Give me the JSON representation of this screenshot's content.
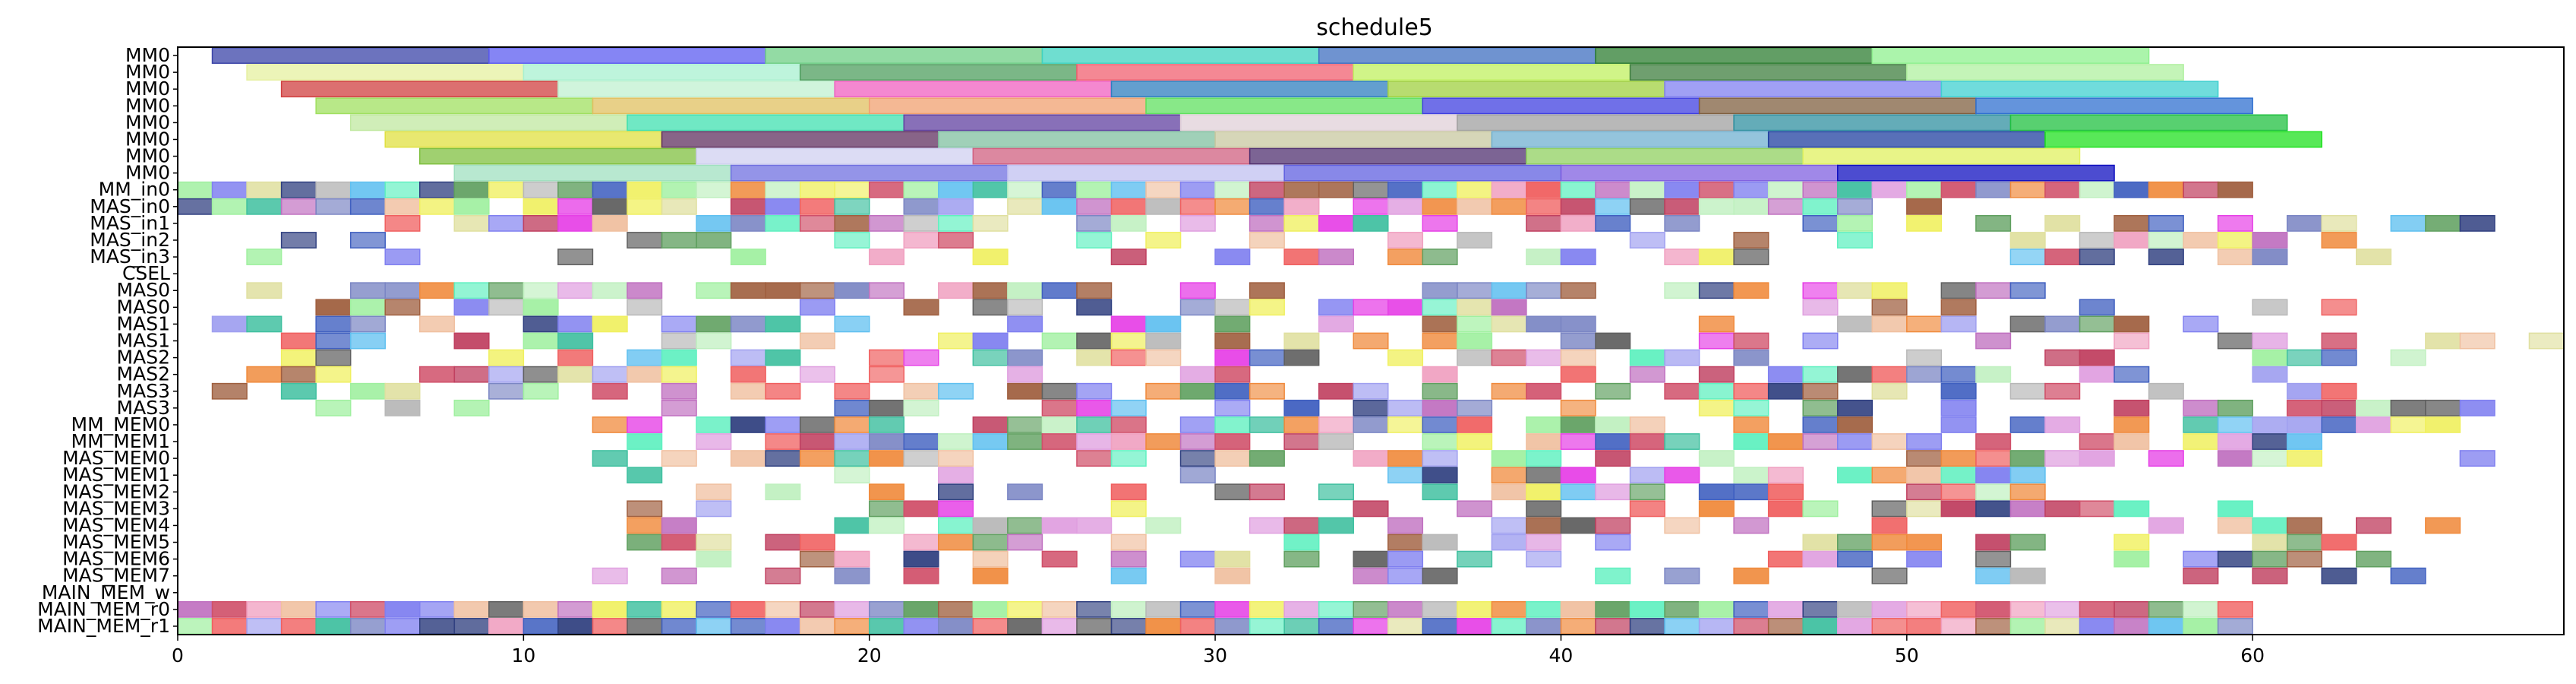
{
  "chart_data": {
    "type": "gantt",
    "title": "schedule5",
    "xlabel": "",
    "ylabel": "",
    "xlim": [
      0,
      69
    ],
    "xticks": [
      0,
      10,
      20,
      30,
      40,
      50,
      60
    ],
    "grid": false,
    "legend": "none",
    "rows": [
      "MM0",
      "MM0",
      "MM0",
      "MM0",
      "MM0",
      "MM0",
      "MM0",
      "MM0",
      "MM_in0",
      "MAS_in0",
      "MAS_in1",
      "MAS_in2",
      "MAS_in3",
      "CSEL",
      "MAS0",
      "MAS0",
      "MAS1",
      "MAS1",
      "MAS2",
      "MAS2",
      "MAS3",
      "MAS3",
      "MM_MEM0",
      "MM_MEM1",
      "MAS_MEM0",
      "MAS_MEM1",
      "MAS_MEM2",
      "MAS_MEM3",
      "MAS_MEM4",
      "MAS_MEM5",
      "MAS_MEM6",
      "MAS_MEM7",
      "MAIN_MEM_w",
      "MAIN_MEM_r0",
      "MAIN_MEM_r1"
    ],
    "tasks": [
      {
        "row": 0,
        "start": 1,
        "end": 9,
        "color": "#3b44a8"
      },
      {
        "row": 0,
        "start": 9,
        "end": 17,
        "color": "#5c5cf0"
      },
      {
        "row": 0,
        "start": 17,
        "end": 25,
        "color": "#6fcf86"
      },
      {
        "row": 0,
        "start": 25,
        "end": 33,
        "color": "#3fd3c0"
      },
      {
        "row": 0,
        "start": 33,
        "end": 41,
        "color": "#3f6fc0"
      },
      {
        "row": 0,
        "start": 41,
        "end": 49,
        "color": "#2e7d32"
      },
      {
        "row": 0,
        "start": 49,
        "end": 57,
        "color": "#8ff08f"
      },
      {
        "row": 1,
        "start": 2,
        "end": 10,
        "color": "#e6f0a0"
      },
      {
        "row": 1,
        "start": 10,
        "end": 18,
        "color": "#a8f0d0"
      },
      {
        "row": 1,
        "start": 18,
        "end": 26,
        "color": "#4f9f5f"
      },
      {
        "row": 1,
        "start": 26,
        "end": 34,
        "color": "#f06070"
      },
      {
        "row": 1,
        "start": 34,
        "end": 42,
        "color": "#c0f060"
      },
      {
        "row": 1,
        "start": 42,
        "end": 50,
        "color": "#3f7f3f"
      },
      {
        "row": 1,
        "start": 50,
        "end": 58,
        "color": "#b0f0a0"
      },
      {
        "row": 2,
        "start": 3,
        "end": 11,
        "color": "#d04040"
      },
      {
        "row": 2,
        "start": 11,
        "end": 19,
        "color": "#c0f0d0"
      },
      {
        "row": 2,
        "start": 19,
        "end": 27,
        "color": "#f060c0"
      },
      {
        "row": 2,
        "start": 27,
        "end": 35,
        "color": "#2f7fbf"
      },
      {
        "row": 2,
        "start": 35,
        "end": 43,
        "color": "#a0d040"
      },
      {
        "row": 2,
        "start": 43,
        "end": 51,
        "color": "#8080f0"
      },
      {
        "row": 2,
        "start": 51,
        "end": 59,
        "color": "#40d0d0"
      },
      {
        "row": 3,
        "start": 4,
        "end": 12,
        "color": "#a0e060"
      },
      {
        "row": 3,
        "start": 12,
        "end": 20,
        "color": "#e0c060"
      },
      {
        "row": 3,
        "start": 20,
        "end": 28,
        "color": "#f0a070"
      },
      {
        "row": 3,
        "start": 28,
        "end": 36,
        "color": "#60e060"
      },
      {
        "row": 3,
        "start": 36,
        "end": 44,
        "color": "#4040e0"
      },
      {
        "row": 3,
        "start": 44,
        "end": 52,
        "color": "#806040"
      },
      {
        "row": 3,
        "start": 52,
        "end": 60,
        "color": "#3070d0"
      },
      {
        "row": 4,
        "start": 5,
        "end": 13,
        "color": "#c0e8a0"
      },
      {
        "row": 4,
        "start": 13,
        "end": 21,
        "color": "#40e0b0"
      },
      {
        "row": 4,
        "start": 21,
        "end": 29,
        "color": "#6040a0"
      },
      {
        "row": 4,
        "start": 29,
        "end": 37,
        "color": "#e0d0d8"
      },
      {
        "row": 4,
        "start": 37,
        "end": 45,
        "color": "#a0a0a0"
      },
      {
        "row": 4,
        "start": 45,
        "end": 53,
        "color": "#3090a0"
      },
      {
        "row": 4,
        "start": 53,
        "end": 61,
        "color": "#20c040"
      },
      {
        "row": 5,
        "start": 6,
        "end": 14,
        "color": "#e0e040"
      },
      {
        "row": 5,
        "start": 14,
        "end": 22,
        "color": "#603060"
      },
      {
        "row": 5,
        "start": 22,
        "end": 30,
        "color": "#80c0a0"
      },
      {
        "row": 5,
        "start": 30,
        "end": 38,
        "color": "#c8c8a0"
      },
      {
        "row": 5,
        "start": 38,
        "end": 46,
        "color": "#70b0d0"
      },
      {
        "row": 5,
        "start": 46,
        "end": 54,
        "color": "#2040a0"
      },
      {
        "row": 5,
        "start": 54,
        "end": 62,
        "color": "#20e020"
      },
      {
        "row": 6,
        "start": 7,
        "end": 15,
        "color": "#80c040"
      },
      {
        "row": 6,
        "start": 15,
        "end": 23,
        "color": "#d0d0f0"
      },
      {
        "row": 6,
        "start": 23,
        "end": 31,
        "color": "#d06080"
      },
      {
        "row": 6,
        "start": 31,
        "end": 39,
        "color": "#503070"
      },
      {
        "row": 6,
        "start": 39,
        "end": 47,
        "color": "#90d060"
      },
      {
        "row": 6,
        "start": 47,
        "end": 55,
        "color": "#e0f060"
      },
      {
        "row": 7,
        "start": 8,
        "end": 16,
        "color": "#a0e0c0"
      },
      {
        "row": 7,
        "start": 16,
        "end": 24,
        "color": "#7070e0"
      },
      {
        "row": 7,
        "start": 24,
        "end": 32,
        "color": "#c0c0f0"
      },
      {
        "row": 7,
        "start": 32,
        "end": 40,
        "color": "#6060e0"
      },
      {
        "row": 7,
        "start": 40,
        "end": 48,
        "color": "#8060e0"
      },
      {
        "row": 7,
        "start": 48,
        "end": 56,
        "color": "#1010c0"
      }
    ],
    "pattern": {
      "palette": [
        "#7b86c4",
        "#e640e6",
        "#f08a3c",
        "#d0506a",
        "#b8b8b8",
        "#60c0f0",
        "#c070c0",
        "#a0f0a0",
        "#f0a0c0",
        "#60a060",
        "#f0f060",
        "#4060c0",
        "#e0a0e0",
        "#40c0a0",
        "#a06040",
        "#f0c0a0",
        "#8080f0",
        "#c0f0c0",
        "#304080",
        "#f06060",
        "#a0a0f0",
        "#60f0c0",
        "#e0e0a0",
        "#606060",
        "#c04060"
      ],
      "dense_rows": [
        {
          "row": 8,
          "start": 0,
          "end": 60,
          "fill": 1.0
        },
        {
          "row": 9,
          "start": 0,
          "end": 51,
          "fill": 0.9
        },
        {
          "row": 10,
          "start": 0,
          "end": 67,
          "fill": 0.6
        },
        {
          "row": 11,
          "start": 0,
          "end": 64,
          "fill": 0.45
        },
        {
          "row": 12,
          "start": 0,
          "end": 65,
          "fill": 0.45
        },
        {
          "row": 14,
          "start": 1,
          "end": 54,
          "fill": 0.55
        },
        {
          "row": 15,
          "start": 2,
          "end": 66,
          "fill": 0.55
        },
        {
          "row": 16,
          "start": 1,
          "end": 59,
          "fill": 0.5
        },
        {
          "row": 17,
          "start": 1,
          "end": 69,
          "fill": 0.5
        },
        {
          "row": 18,
          "start": 1,
          "end": 66,
          "fill": 0.5
        },
        {
          "row": 19,
          "start": 2,
          "end": 66,
          "fill": 0.5
        },
        {
          "row": 20,
          "start": 1,
          "end": 63,
          "fill": 0.5
        },
        {
          "row": 21,
          "start": 2,
          "end": 68,
          "fill": 0.5
        },
        {
          "row": 22,
          "start": 12,
          "end": 66,
          "fill": 0.8
        },
        {
          "row": 23,
          "start": 12,
          "end": 63,
          "fill": 0.8
        },
        {
          "row": 24,
          "start": 12,
          "end": 67,
          "fill": 0.5
        },
        {
          "row": 25,
          "start": 12,
          "end": 54,
          "fill": 0.5
        },
        {
          "row": 26,
          "start": 12,
          "end": 55,
          "fill": 0.5
        },
        {
          "row": 27,
          "start": 12,
          "end": 62,
          "fill": 0.5
        },
        {
          "row": 28,
          "start": 12,
          "end": 66,
          "fill": 0.5
        },
        {
          "row": 29,
          "start": 12,
          "end": 63,
          "fill": 0.5
        },
        {
          "row": 30,
          "start": 12,
          "end": 65,
          "fill": 0.5
        },
        {
          "row": 31,
          "start": 12,
          "end": 65,
          "fill": 0.5
        },
        {
          "row": 33,
          "start": 0,
          "end": 60,
          "fill": 1.0
        },
        {
          "row": 34,
          "start": 0,
          "end": 60,
          "fill": 1.0
        }
      ]
    }
  }
}
